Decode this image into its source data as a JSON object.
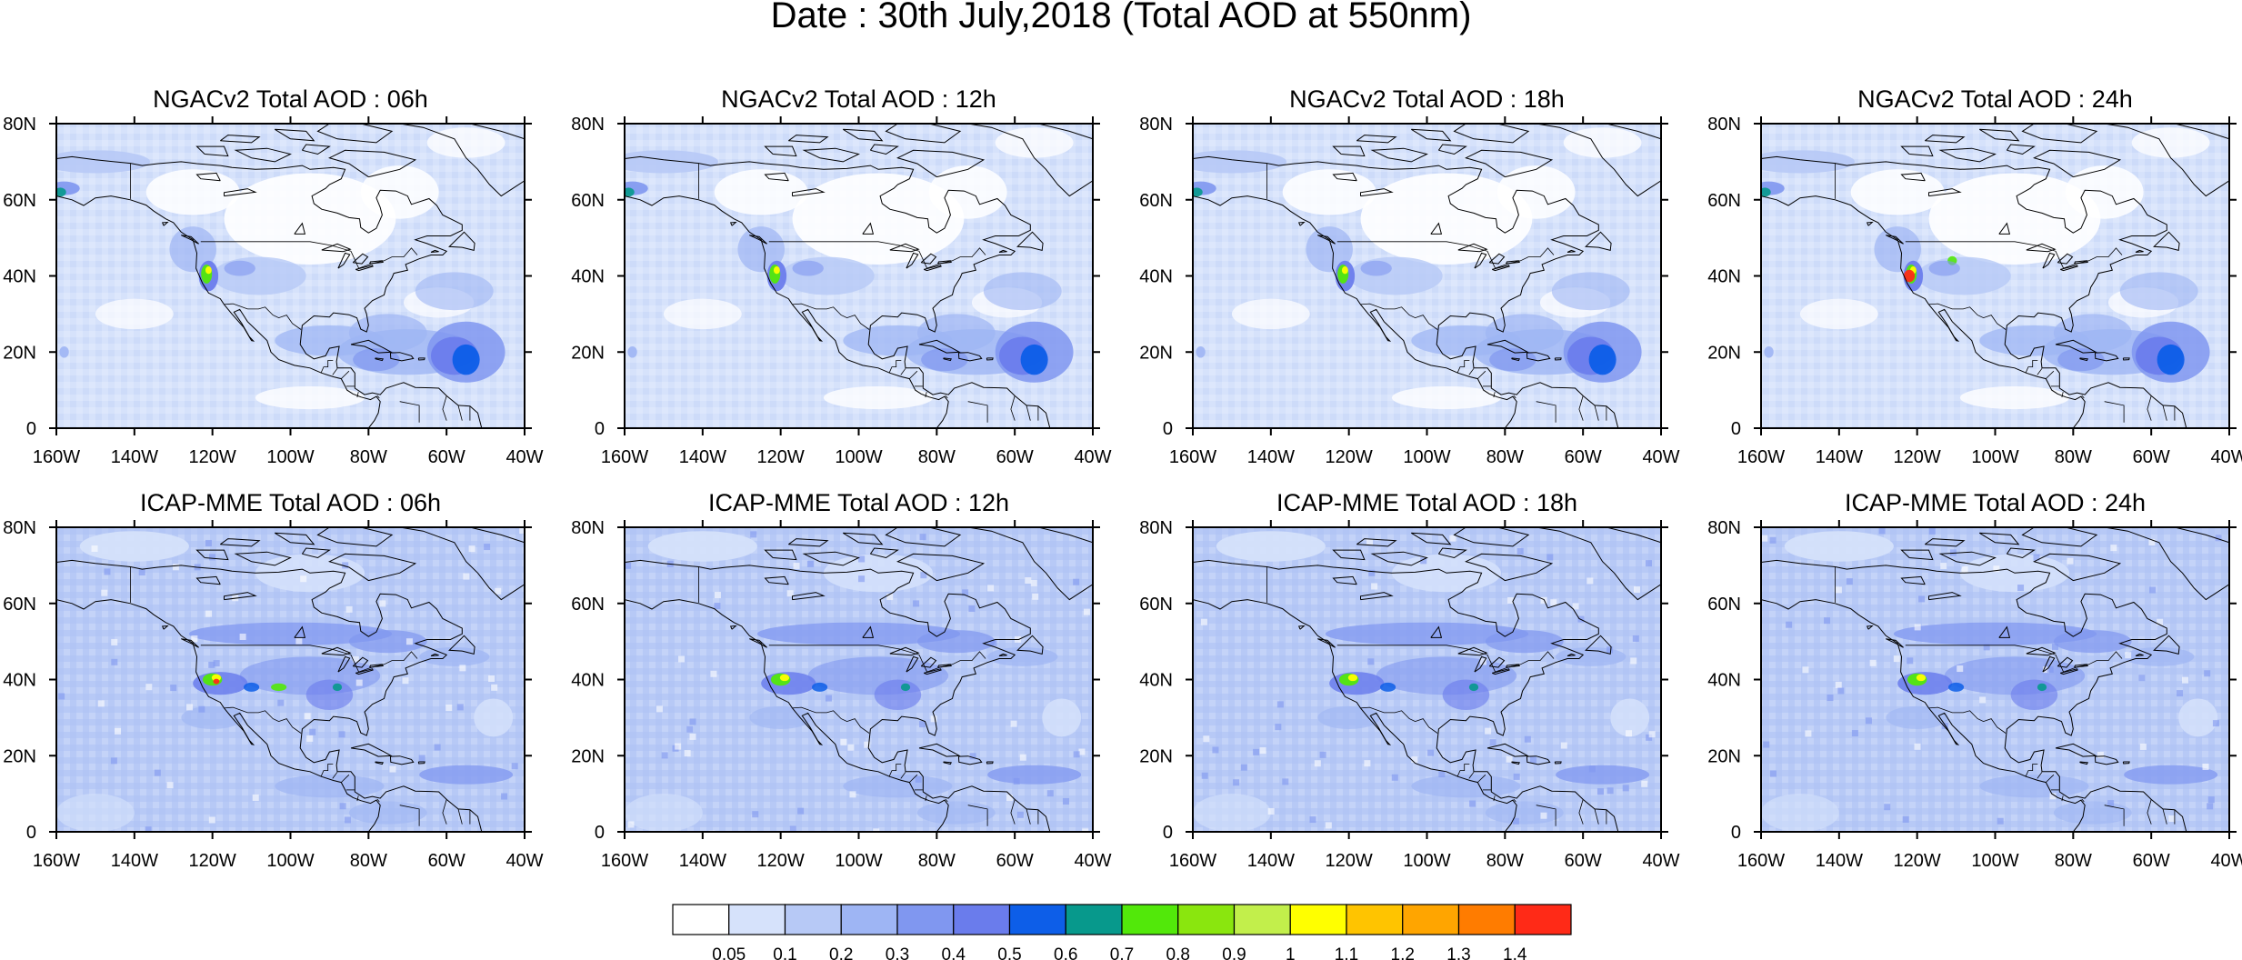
{
  "figure": {
    "title": "Date : 30th July,2018 (Total AOD at 550nm)"
  },
  "panels": [
    {
      "title": "NGACv2 Total AOD : 06h",
      "model": "ngac",
      "hour": 6
    },
    {
      "title": "NGACv2 Total AOD : 12h",
      "model": "ngac",
      "hour": 12
    },
    {
      "title": "NGACv2 Total AOD : 18h",
      "model": "ngac",
      "hour": 18
    },
    {
      "title": "NGACv2 Total AOD : 24h",
      "model": "ngac",
      "hour": 24
    },
    {
      "title": "ICAP-MME Total AOD : 06h",
      "model": "icap",
      "hour": 6
    },
    {
      "title": "ICAP-MME Total AOD : 12h",
      "model": "icap",
      "hour": 12
    },
    {
      "title": "ICAP-MME Total AOD : 18h",
      "model": "icap",
      "hour": 18
    },
    {
      "title": "ICAP-MME Total AOD : 24h",
      "model": "icap",
      "hour": 24
    }
  ],
  "axes": {
    "lon_range": [
      -160,
      -40
    ],
    "lat_range": [
      0,
      80
    ],
    "lon_ticks": [
      {
        "value": -160,
        "label": "160W"
      },
      {
        "value": -140,
        "label": "140W"
      },
      {
        "value": -120,
        "label": "120W"
      },
      {
        "value": -100,
        "label": "100W"
      },
      {
        "value": -80,
        "label": "80W"
      },
      {
        "value": -60,
        "label": "60W"
      },
      {
        "value": -40,
        "label": "40W"
      }
    ],
    "lat_ticks": [
      {
        "value": 80,
        "label": "80N"
      },
      {
        "value": 60,
        "label": "60N"
      },
      {
        "value": 40,
        "label": "40N"
      },
      {
        "value": 20,
        "label": "20N"
      },
      {
        "value": 0,
        "label": "0"
      }
    ]
  },
  "colorbar": {
    "colors": [
      "#ffffff",
      "#d6e2fb",
      "#b7c9f6",
      "#9eb5f4",
      "#8097f0",
      "#6a7cec",
      "#0d5ee8",
      "#07998c",
      "#52e80a",
      "#8ae60e",
      "#c2ef4b",
      "#ffff00",
      "#ffc400",
      "#ffa500",
      "#ff7c00",
      "#ff2a17"
    ],
    "labels": [
      "0.05",
      "0.1",
      "0.2",
      "0.3",
      "0.4",
      "0.5",
      "0.6",
      "0.7",
      "0.8",
      "0.9",
      "1",
      "1.1",
      "1.2",
      "1.3",
      "1.4"
    ]
  }
}
